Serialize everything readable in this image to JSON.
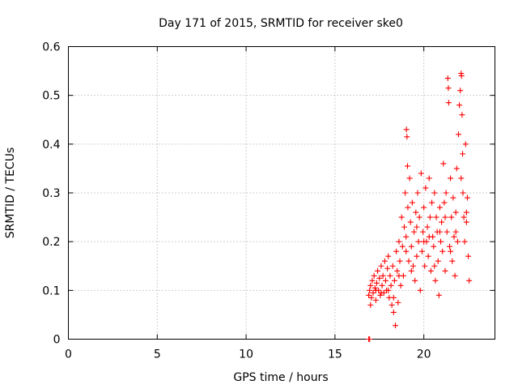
{
  "chart_data": {
    "type": "scatter",
    "title": "Day 171 of 2015, SRMTID for receiver ske0",
    "xlabel": "GPS time / hours",
    "ylabel": "SRMTID / TECUs",
    "xlim": [
      0,
      24
    ],
    "ylim": [
      0,
      0.6
    ],
    "xticks": [
      0,
      5,
      10,
      15,
      20
    ],
    "xtick_labels": [
      "0",
      "5",
      "10",
      "15",
      "20"
    ],
    "yticks": [
      0,
      0.1,
      0.2,
      0.3,
      0.4,
      0.5,
      0.6
    ],
    "ytick_labels": [
      "0",
      "0.1",
      "0.2",
      "0.3",
      "0.4",
      "0.5",
      "0.6"
    ],
    "grid": true,
    "marker": "+",
    "color": "#ff0000",
    "series": [
      {
        "name": "SRMTID",
        "points": [
          [
            16.9,
            0.0
          ],
          [
            16.95,
            0.0
          ],
          [
            16.9,
            0.09
          ],
          [
            16.95,
            0.1
          ],
          [
            17.0,
            0.11
          ],
          [
            17.05,
            0.085
          ],
          [
            17.1,
            0.12
          ],
          [
            17.15,
            0.095
          ],
          [
            17.2,
            0.13
          ],
          [
            17.25,
            0.105
          ],
          [
            17.3,
            0.08
          ],
          [
            17.35,
            0.115
          ],
          [
            17.4,
            0.14
          ],
          [
            17.45,
            0.1
          ],
          [
            17.5,
            0.125
          ],
          [
            17.55,
            0.09
          ],
          [
            17.6,
            0.15
          ],
          [
            17.65,
            0.11
          ],
          [
            17.7,
            0.13
          ],
          [
            17.75,
            0.095
          ],
          [
            17.8,
            0.16
          ],
          [
            17.85,
            0.12
          ],
          [
            17.9,
            0.1
          ],
          [
            17.95,
            0.145
          ],
          [
            18.0,
            0.17
          ],
          [
            18.05,
            0.085
          ],
          [
            18.1,
            0.13
          ],
          [
            18.15,
            0.11
          ],
          [
            18.2,
            0.07
          ],
          [
            18.25,
            0.15
          ],
          [
            18.3,
            0.055
          ],
          [
            18.35,
            0.12
          ],
          [
            18.4,
            0.028
          ],
          [
            18.45,
            0.18
          ],
          [
            18.5,
            0.14
          ],
          [
            18.55,
            0.075
          ],
          [
            18.6,
            0.2
          ],
          [
            18.65,
            0.16
          ],
          [
            18.7,
            0.11
          ],
          [
            18.75,
            0.25
          ],
          [
            18.8,
            0.19
          ],
          [
            18.85,
            0.13
          ],
          [
            18.9,
            0.23
          ],
          [
            18.95,
            0.3
          ],
          [
            19.0,
            0.21
          ],
          [
            19.02,
            0.43
          ],
          [
            19.05,
            0.415
          ],
          [
            19.08,
            0.355
          ],
          [
            19.1,
            0.27
          ],
          [
            19.15,
            0.16
          ],
          [
            19.2,
            0.33
          ],
          [
            19.25,
            0.24
          ],
          [
            19.3,
            0.19
          ],
          [
            19.35,
            0.28
          ],
          [
            19.4,
            0.15
          ],
          [
            19.45,
            0.22
          ],
          [
            19.5,
            0.12
          ],
          [
            19.55,
            0.26
          ],
          [
            19.6,
            0.17
          ],
          [
            19.65,
            0.3
          ],
          [
            19.7,
            0.2
          ],
          [
            19.75,
            0.25
          ],
          [
            19.8,
            0.1
          ],
          [
            19.85,
            0.34
          ],
          [
            19.9,
            0.18
          ],
          [
            19.95,
            0.22
          ],
          [
            20.0,
            0.27
          ],
          [
            20.05,
            0.15
          ],
          [
            20.1,
            0.31
          ],
          [
            20.15,
            0.2
          ],
          [
            20.2,
            0.23
          ],
          [
            20.25,
            0.17
          ],
          [
            20.3,
            0.33
          ],
          [
            20.35,
            0.25
          ],
          [
            20.4,
            0.14
          ],
          [
            20.45,
            0.28
          ],
          [
            20.5,
            0.21
          ],
          [
            20.55,
            0.19
          ],
          [
            20.6,
            0.3
          ],
          [
            20.65,
            0.12
          ],
          [
            20.7,
            0.25
          ],
          [
            20.75,
            0.22
          ],
          [
            20.8,
            0.16
          ],
          [
            20.85,
            0.09
          ],
          [
            20.9,
            0.27
          ],
          [
            20.95,
            0.2
          ],
          [
            21.0,
            0.24
          ],
          [
            21.05,
            0.18
          ],
          [
            21.1,
            0.36
          ],
          [
            21.15,
            0.28
          ],
          [
            21.2,
            0.14
          ],
          [
            21.25,
            0.3
          ],
          [
            21.3,
            0.22
          ],
          [
            21.35,
            0.535
          ],
          [
            21.38,
            0.515
          ],
          [
            21.4,
            0.485
          ],
          [
            21.45,
            0.19
          ],
          [
            21.5,
            0.33
          ],
          [
            21.55,
            0.25
          ],
          [
            21.6,
            0.16
          ],
          [
            21.65,
            0.29
          ],
          [
            21.7,
            0.21
          ],
          [
            21.75,
            0.13
          ],
          [
            21.8,
            0.26
          ],
          [
            21.85,
            0.35
          ],
          [
            21.9,
            0.2
          ],
          [
            21.95,
            0.42
          ],
          [
            22.0,
            0.48
          ],
          [
            22.05,
            0.51
          ],
          [
            22.1,
            0.545
          ],
          [
            22.12,
            0.54
          ],
          [
            22.15,
            0.46
          ],
          [
            22.18,
            0.38
          ],
          [
            22.2,
            0.3
          ],
          [
            22.25,
            0.25
          ],
          [
            22.3,
            0.2
          ],
          [
            22.35,
            0.4
          ],
          [
            22.4,
            0.24
          ],
          [
            22.45,
            0.29
          ],
          [
            22.5,
            0.17
          ],
          [
            22.55,
            0.12
          ],
          [
            17.0,
            0.07
          ],
          [
            17.3,
            0.1
          ],
          [
            17.6,
            0.095
          ],
          [
            18.0,
            0.1
          ],
          [
            18.3,
            0.085
          ],
          [
            18.6,
            0.13
          ],
          [
            19.0,
            0.18
          ],
          [
            19.3,
            0.14
          ],
          [
            19.6,
            0.23
          ],
          [
            20.0,
            0.2
          ],
          [
            20.3,
            0.21
          ],
          [
            20.6,
            0.15
          ],
          [
            20.9,
            0.22
          ],
          [
            21.2,
            0.25
          ],
          [
            21.5,
            0.18
          ],
          [
            21.8,
            0.22
          ],
          [
            22.1,
            0.33
          ],
          [
            22.4,
            0.26
          ]
        ]
      }
    ]
  }
}
